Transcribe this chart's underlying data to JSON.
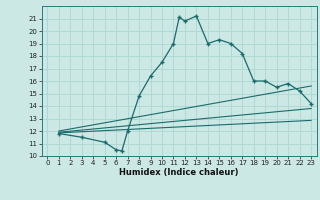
{
  "xlabel": "Humidex (Indice chaleur)",
  "bg_color": "#cce8e5",
  "grid_color": "#b0d8d5",
  "line_color": "#1a6b6b",
  "xlim": [
    -0.5,
    23.5
  ],
  "ylim": [
    10,
    22
  ],
  "xticks": [
    0,
    1,
    2,
    3,
    4,
    5,
    6,
    7,
    8,
    9,
    10,
    11,
    12,
    13,
    14,
    15,
    16,
    17,
    18,
    19,
    20,
    21,
    22,
    23
  ],
  "yticks": [
    10,
    11,
    12,
    13,
    14,
    15,
    16,
    17,
    18,
    19,
    20,
    21
  ],
  "main_x": [
    1,
    3,
    5,
    6,
    6.5,
    7,
    8,
    9,
    10,
    11,
    11.5,
    12,
    13,
    14,
    15,
    16,
    17,
    18,
    19,
    20,
    21,
    22,
    23
  ],
  "main_y": [
    11.8,
    11.5,
    11.1,
    10.5,
    10.4,
    12.0,
    14.8,
    16.4,
    17.5,
    19.0,
    21.1,
    20.8,
    21.2,
    19.0,
    19.3,
    19.0,
    18.2,
    16.0,
    16.0,
    15.5,
    15.8,
    15.2,
    14.2
  ],
  "line1_x": [
    1,
    23
  ],
  "line1_y": [
    11.85,
    12.85
  ],
  "line2_x": [
    1,
    23
  ],
  "line2_y": [
    11.9,
    13.8
  ],
  "line3_x": [
    1,
    23
  ],
  "line3_y": [
    12.0,
    15.6
  ],
  "xtick_fontsize": 5,
  "ytick_fontsize": 5,
  "xlabel_fontsize": 6
}
